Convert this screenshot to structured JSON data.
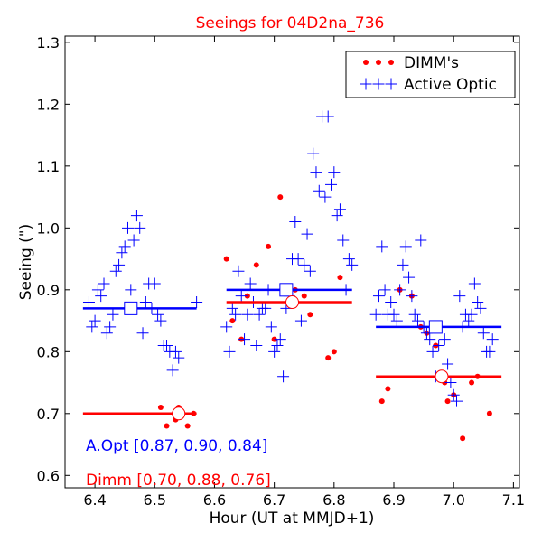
{
  "chart_data": {
    "type": "scatter",
    "title": "Seeings for 04D2na_736",
    "xlabel": "Hour (UT at MMJD+1)",
    "ylabel": "Seeing (\")",
    "xlim": [
      6.35,
      7.11
    ],
    "ylim": [
      0.58,
      1.31
    ],
    "xticks": [
      6.4,
      6.5,
      6.6,
      6.7,
      6.8,
      6.9,
      7.0,
      7.1
    ],
    "xtick_labels": [
      "6.4",
      "6.5",
      "6.6",
      "6.7",
      "6.8",
      "6.9",
      "7.0",
      "7.1"
    ],
    "yticks": [
      0.6,
      0.7,
      0.8,
      0.9,
      1.0,
      1.1,
      1.2,
      1.3
    ],
    "ytick_labels": [
      "0.6",
      "0.7",
      "0.8",
      "0.9",
      "1.0",
      "1.1",
      "1.2",
      "1.3"
    ],
    "colors": {
      "dimm": "#ff0000",
      "aopt": "#0000ff",
      "title": "#ff0000"
    },
    "legend": {
      "position": "top-right",
      "entries": [
        {
          "name": "DIMM's",
          "series": "dimm"
        },
        {
          "name": "Active Optic",
          "series": "aopt"
        }
      ]
    },
    "series": [
      {
        "name": "DIMM's",
        "key": "dimm",
        "marker": "dot",
        "points": [
          [
            6.51,
            0.71
          ],
          [
            6.52,
            0.68
          ],
          [
            6.535,
            0.69
          ],
          [
            6.54,
            0.71
          ],
          [
            6.555,
            0.68
          ],
          [
            6.565,
            0.7
          ],
          [
            6.62,
            0.95
          ],
          [
            6.63,
            0.85
          ],
          [
            6.645,
            0.82
          ],
          [
            6.655,
            0.89
          ],
          [
            6.67,
            0.94
          ],
          [
            6.69,
            0.97
          ],
          [
            6.7,
            0.82
          ],
          [
            6.71,
            1.05
          ],
          [
            6.735,
            0.9
          ],
          [
            6.75,
            0.89
          ],
          [
            6.76,
            0.86
          ],
          [
            6.79,
            0.79
          ],
          [
            6.8,
            0.8
          ],
          [
            6.81,
            0.92
          ],
          [
            6.88,
            0.72
          ],
          [
            6.89,
            0.74
          ],
          [
            6.91,
            0.9
          ],
          [
            6.93,
            0.89
          ],
          [
            6.945,
            0.84
          ],
          [
            6.955,
            0.83
          ],
          [
            6.97,
            0.81
          ],
          [
            6.985,
            0.75
          ],
          [
            6.99,
            0.72
          ],
          [
            7.0,
            0.73
          ],
          [
            7.015,
            0.66
          ],
          [
            7.03,
            0.75
          ],
          [
            7.04,
            0.76
          ],
          [
            7.06,
            0.7
          ]
        ]
      },
      {
        "name": "Active Optic",
        "key": "aopt",
        "marker": "plus",
        "points": [
          [
            6.39,
            0.88
          ],
          [
            6.395,
            0.84
          ],
          [
            6.4,
            0.85
          ],
          [
            6.405,
            0.9
          ],
          [
            6.41,
            0.89
          ],
          [
            6.415,
            0.91
          ],
          [
            6.42,
            0.83
          ],
          [
            6.425,
            0.84
          ],
          [
            6.43,
            0.86
          ],
          [
            6.435,
            0.93
          ],
          [
            6.44,
            0.94
          ],
          [
            6.445,
            0.96
          ],
          [
            6.45,
            0.97
          ],
          [
            6.455,
            1.0
          ],
          [
            6.46,
            0.9
          ],
          [
            6.465,
            0.98
          ],
          [
            6.47,
            1.02
          ],
          [
            6.475,
            1.0
          ],
          [
            6.48,
            0.83
          ],
          [
            6.485,
            0.88
          ],
          [
            6.49,
            0.91
          ],
          [
            6.495,
            0.87
          ],
          [
            6.5,
            0.91
          ],
          [
            6.505,
            0.86
          ],
          [
            6.51,
            0.85
          ],
          [
            6.515,
            0.81
          ],
          [
            6.52,
            0.81
          ],
          [
            6.525,
            0.8
          ],
          [
            6.53,
            0.77
          ],
          [
            6.535,
            0.8
          ],
          [
            6.54,
            0.79
          ],
          [
            6.57,
            0.88
          ],
          [
            6.62,
            0.84
          ],
          [
            6.625,
            0.8
          ],
          [
            6.63,
            0.87
          ],
          [
            6.635,
            0.86
          ],
          [
            6.64,
            0.93
          ],
          [
            6.645,
            0.89
          ],
          [
            6.65,
            0.82
          ],
          [
            6.655,
            0.86
          ],
          [
            6.66,
            0.91
          ],
          [
            6.665,
            0.88
          ],
          [
            6.67,
            0.81
          ],
          [
            6.675,
            0.86
          ],
          [
            6.68,
            0.87
          ],
          [
            6.685,
            0.87
          ],
          [
            6.69,
            0.9
          ],
          [
            6.695,
            0.84
          ],
          [
            6.7,
            0.8
          ],
          [
            6.705,
            0.81
          ],
          [
            6.71,
            0.82
          ],
          [
            6.715,
            0.76
          ],
          [
            6.72,
            0.87
          ],
          [
            6.725,
            0.89
          ],
          [
            6.73,
            0.95
          ],
          [
            6.735,
            1.01
          ],
          [
            6.74,
            0.95
          ],
          [
            6.745,
            0.85
          ],
          [
            6.75,
            0.94
          ],
          [
            6.755,
            0.99
          ],
          [
            6.76,
            0.93
          ],
          [
            6.765,
            1.12
          ],
          [
            6.77,
            1.09
          ],
          [
            6.775,
            1.06
          ],
          [
            6.78,
            1.18
          ],
          [
            6.785,
            1.05
          ],
          [
            6.79,
            1.18
          ],
          [
            6.795,
            1.07
          ],
          [
            6.8,
            1.09
          ],
          [
            6.805,
            1.02
          ],
          [
            6.81,
            1.03
          ],
          [
            6.815,
            0.98
          ],
          [
            6.82,
            0.9
          ],
          [
            6.825,
            0.95
          ],
          [
            6.83,
            0.94
          ],
          [
            6.87,
            0.86
          ],
          [
            6.875,
            0.89
          ],
          [
            6.88,
            0.97
          ],
          [
            6.885,
            0.9
          ],
          [
            6.89,
            0.86
          ],
          [
            6.895,
            0.88
          ],
          [
            6.9,
            0.86
          ],
          [
            6.905,
            0.85
          ],
          [
            6.91,
            0.9
          ],
          [
            6.915,
            0.94
          ],
          [
            6.92,
            0.97
          ],
          [
            6.925,
            0.92
          ],
          [
            6.93,
            0.89
          ],
          [
            6.935,
            0.86
          ],
          [
            6.94,
            0.85
          ],
          [
            6.945,
            0.98
          ],
          [
            6.95,
            0.84
          ],
          [
            6.955,
            0.83
          ],
          [
            6.96,
            0.82
          ],
          [
            6.965,
            0.8
          ],
          [
            6.97,
            0.76
          ],
          [
            6.975,
            0.81
          ],
          [
            6.98,
            0.84
          ],
          [
            6.985,
            0.82
          ],
          [
            6.99,
            0.78
          ],
          [
            6.995,
            0.75
          ],
          [
            7.0,
            0.73
          ],
          [
            7.005,
            0.72
          ],
          [
            7.01,
            0.89
          ],
          [
            7.015,
            0.84
          ],
          [
            7.02,
            0.86
          ],
          [
            7.025,
            0.85
          ],
          [
            7.03,
            0.86
          ],
          [
            7.035,
            0.91
          ],
          [
            7.04,
            0.88
          ],
          [
            7.045,
            0.87
          ],
          [
            7.05,
            0.83
          ],
          [
            7.055,
            0.8
          ],
          [
            7.06,
            0.8
          ],
          [
            7.065,
            0.82
          ]
        ]
      }
    ],
    "block_means": [
      {
        "series": "aopt",
        "x_start": 6.38,
        "x_end": 6.57,
        "value": 0.87,
        "marker_x": 6.46
      },
      {
        "series": "aopt",
        "x_start": 6.62,
        "x_end": 6.83,
        "value": 0.9,
        "marker_x": 6.72
      },
      {
        "series": "aopt",
        "x_start": 6.87,
        "x_end": 7.08,
        "value": 0.84,
        "marker_x": 6.97
      },
      {
        "series": "dimm",
        "x_start": 6.38,
        "x_end": 6.57,
        "value": 0.7,
        "marker_x": 6.54
      },
      {
        "series": "dimm",
        "x_start": 6.62,
        "x_end": 6.83,
        "value": 0.88,
        "marker_x": 6.73
      },
      {
        "series": "dimm",
        "x_start": 6.87,
        "x_end": 7.08,
        "value": 0.76,
        "marker_x": 6.98
      }
    ],
    "annotations": [
      {
        "series": "aopt",
        "text": "A.Opt [0.87, 0.90, 0.84]"
      },
      {
        "series": "dimm",
        "text": "Dimm [0.70, 0.88, 0.76]"
      }
    ]
  }
}
